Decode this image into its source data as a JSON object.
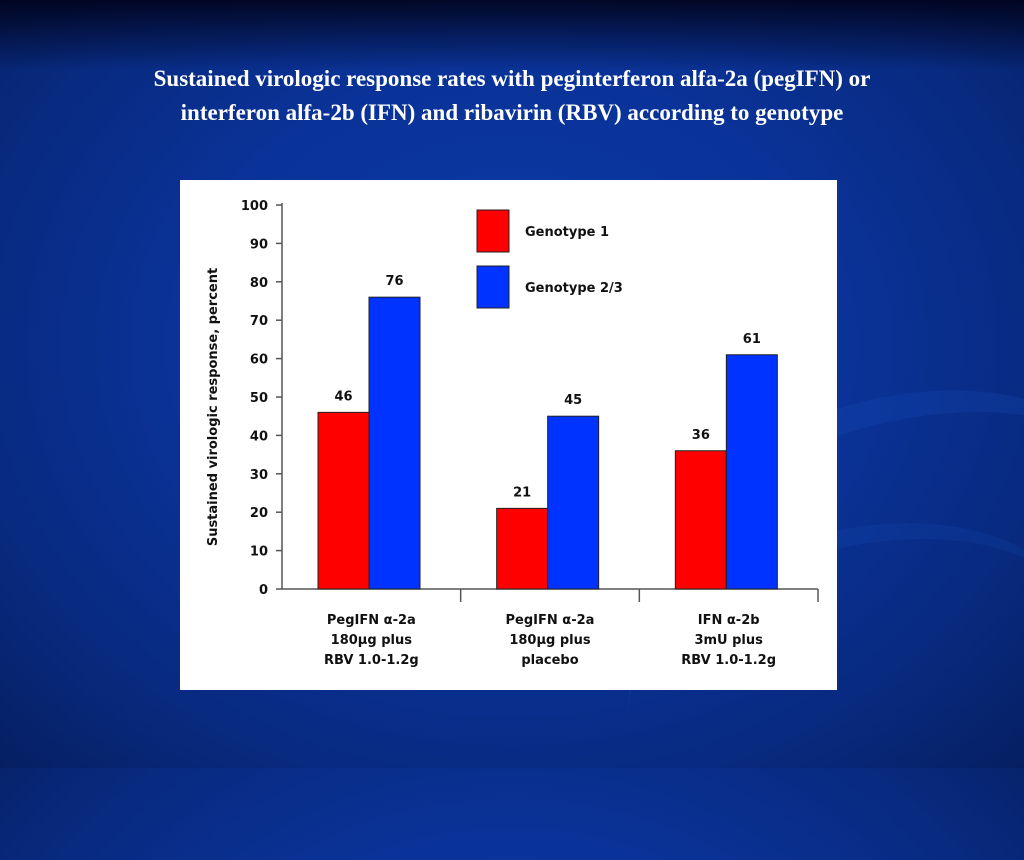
{
  "slide": {
    "title_line1": "Sustained virologic response rates with peginterferon alfa-2a (pegIFN) or",
    "title_line2": "interferon alfa-2b (IFN) and ribavirin (RBV) according to genotype"
  },
  "chart_data": {
    "type": "bar",
    "title": "",
    "xlabel": "",
    "ylabel": "Sustained virologic response, percent",
    "ylim": [
      0,
      100
    ],
    "yticks": [
      0,
      10,
      20,
      30,
      40,
      50,
      60,
      70,
      80,
      90,
      100
    ],
    "grid": false,
    "legend_position": "top-center",
    "categories": [
      [
        "PegIFN α-2a",
        "180μg plus",
        "RBV 1.0-1.2g"
      ],
      [
        "PegIFN α-2a",
        "180μg plus",
        "placebo"
      ],
      [
        "IFN α-2b",
        "3mU plus",
        "RBV 1.0-1.2g"
      ]
    ],
    "series": [
      {
        "name": "Genotype 1",
        "color": "#ff0000",
        "values": [
          46,
          21,
          36
        ]
      },
      {
        "name": "Genotype 2/3",
        "color": "#0033ff",
        "values": [
          76,
          45,
          61
        ]
      }
    ]
  }
}
